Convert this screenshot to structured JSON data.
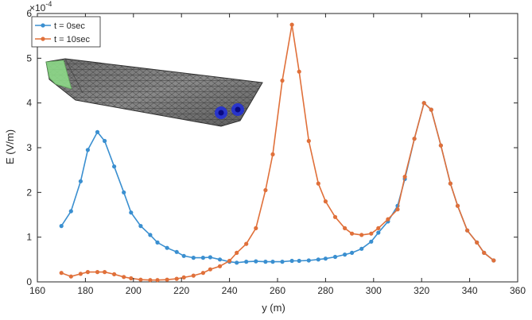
{
  "chart_data": {
    "type": "line",
    "xlabel": "y (m)",
    "ylabel": "E (V/m)",
    "y_multiplier": "×10",
    "y_multiplier_exp": "-4",
    "xlim": [
      160,
      360
    ],
    "ylim": [
      0,
      6
    ],
    "x_ticks": [
      "160",
      "180",
      "200",
      "220",
      "240",
      "260",
      "280",
      "300",
      "320",
      "340",
      "360"
    ],
    "y_ticks": [
      "0",
      "1",
      "2",
      "3",
      "4",
      "5",
      "6"
    ],
    "grid": false,
    "legend_position": "top-left",
    "colors": {
      "series_0": "#3a8fd0",
      "series_1": "#e0703a",
      "axis": "#262626"
    },
    "inset_image": "ship-hull-mesh-with-sources",
    "series": [
      {
        "name": "t = 0sec",
        "x": [
          170,
          174,
          178,
          181,
          185,
          188,
          192,
          196,
          199,
          203,
          207,
          210,
          214,
          218,
          221,
          225,
          229,
          232,
          236,
          240,
          243,
          247,
          251,
          255,
          258,
          262,
          266,
          269,
          273,
          277,
          280,
          284,
          288,
          291,
          295,
          299,
          302,
          306,
          310,
          313,
          317,
          321,
          324,
          328,
          332,
          335,
          339,
          343,
          346,
          350
        ],
        "y": [
          1.25,
          1.58,
          2.25,
          2.95,
          3.35,
          3.15,
          2.58,
          2.0,
          1.55,
          1.25,
          1.05,
          0.88,
          0.76,
          0.67,
          0.58,
          0.54,
          0.54,
          0.55,
          0.5,
          0.45,
          0.43,
          0.45,
          0.46,
          0.45,
          0.45,
          0.45,
          0.47,
          0.47,
          0.48,
          0.5,
          0.52,
          0.56,
          0.61,
          0.65,
          0.74,
          0.9,
          1.1,
          1.35,
          1.7,
          2.3,
          3.2,
          4.0,
          3.85,
          3.05,
          2.2,
          1.7,
          1.15,
          0.88,
          0.65,
          0.48
        ]
      },
      {
        "name": "t = 10sec",
        "x": [
          170,
          174,
          178,
          181,
          185,
          188,
          192,
          196,
          199,
          203,
          207,
          210,
          214,
          218,
          221,
          225,
          229,
          232,
          236,
          240,
          243,
          247,
          251,
          255,
          258,
          262,
          266,
          269,
          273,
          277,
          280,
          284,
          288,
          291,
          295,
          299,
          302,
          306,
          310,
          313,
          317,
          321,
          324,
          328,
          332,
          335,
          339,
          343,
          346,
          350
        ],
        "y": [
          0.2,
          0.12,
          0.18,
          0.22,
          0.22,
          0.22,
          0.17,
          0.11,
          0.08,
          0.05,
          0.04,
          0.04,
          0.05,
          0.07,
          0.1,
          0.14,
          0.2,
          0.28,
          0.35,
          0.47,
          0.65,
          0.85,
          1.2,
          2.05,
          2.85,
          4.5,
          5.75,
          4.7,
          3.15,
          2.2,
          1.8,
          1.45,
          1.2,
          1.08,
          1.05,
          1.08,
          1.2,
          1.4,
          1.62,
          2.35,
          3.2,
          4.0,
          3.85,
          3.05,
          2.2,
          1.7,
          1.15,
          0.88,
          0.65,
          0.48
        ]
      }
    ]
  }
}
